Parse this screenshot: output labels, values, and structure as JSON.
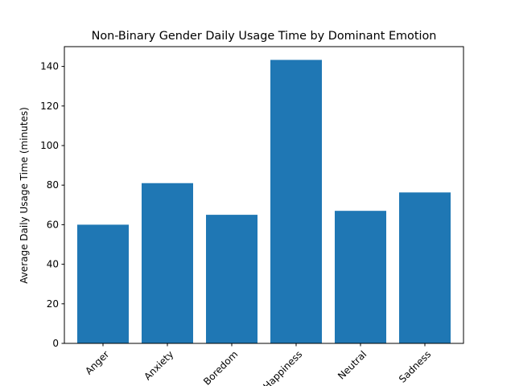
{
  "chart_data": {
    "type": "bar",
    "title": "Non-Binary Gender Daily Usage Time by Dominant Emotion",
    "xlabel": "",
    "ylabel": "Average Daily Usage Time (minutes)",
    "categories": [
      "Anger",
      "Anxiety",
      "Boredom",
      "Happiness",
      "Neutral",
      "Sadness"
    ],
    "values": [
      60,
      81,
      65,
      143.3,
      67,
      76.3
    ],
    "ylim": [
      0,
      150
    ],
    "yticks": [
      0,
      20,
      40,
      60,
      80,
      100,
      120,
      140
    ],
    "ytick_labels": [
      "0",
      "20",
      "40",
      "60",
      "80",
      "100",
      "120",
      "140"
    ],
    "grid": false,
    "legend": "none",
    "colors": {
      "bar": "#1f77b4",
      "axis": "#000000"
    }
  }
}
